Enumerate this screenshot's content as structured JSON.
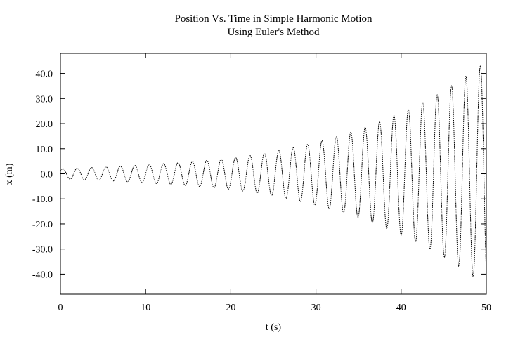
{
  "chart_data": {
    "type": "line",
    "title": [
      "Position Vs. Time in Simple Harmonic Motion",
      "Using Euler's Method"
    ],
    "xlabel": "t (s)",
    "ylabel": "x (m)",
    "xlim": [
      0,
      50
    ],
    "ylim": [
      -48,
      48
    ],
    "x_ticks": [
      {
        "value": 0,
        "label": "0"
      },
      {
        "value": 10,
        "label": "10"
      },
      {
        "value": 20,
        "label": "20"
      },
      {
        "value": 30,
        "label": "30"
      },
      {
        "value": 40,
        "label": "40"
      },
      {
        "value": 50,
        "label": "50"
      }
    ],
    "y_ticks": [
      {
        "value": 40,
        "label": "40.0"
      },
      {
        "value": 30,
        "label": "30.0"
      },
      {
        "value": 20,
        "label": "20.0"
      },
      {
        "value": 10,
        "label": "10.0"
      },
      {
        "value": 0,
        "label": "0.0"
      },
      {
        "value": -10,
        "label": "-10.0"
      },
      {
        "value": -20,
        "label": "-20.0"
      },
      {
        "value": -30,
        "label": "-30.0"
      },
      {
        "value": -40,
        "label": "-40.0"
      }
    ],
    "grid": false,
    "legend": "none",
    "series": [
      {
        "style": "dotted",
        "color": "#000000",
        "period_s": 1.69,
        "initial_x": 1.0,
        "amplitude": {
          "t": [
            0,
            10,
            20,
            30,
            40,
            50
          ],
          "x": [
            2.0,
            3.6,
            6.2,
            12.6,
            24.5,
            45.0
          ]
        }
      }
    ]
  }
}
